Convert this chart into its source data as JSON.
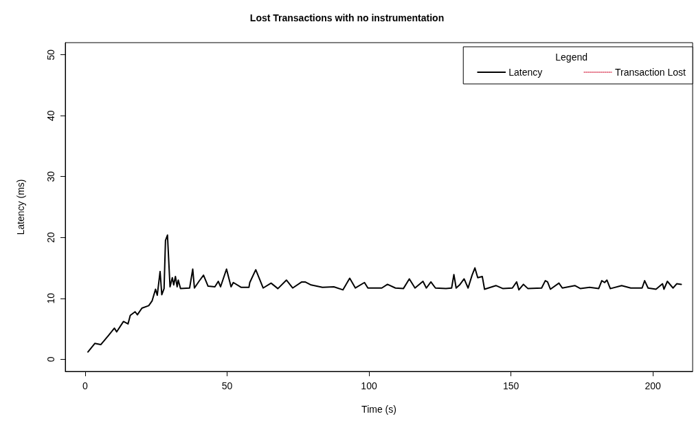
{
  "chart_data": {
    "type": "line",
    "title": "Lost Transactions with no instrumentation",
    "xlabel": "Time (s)",
    "ylabel": "Latency (ms)",
    "legend_title": "Legend",
    "legend": "top right",
    "grid": false,
    "marker": "none",
    "xlim": [
      -7,
      214
    ],
    "xticks": [
      0,
      50,
      100,
      150,
      200
    ],
    "ylim": [
      -2,
      52
    ],
    "yticks": [
      0,
      10,
      20,
      30,
      40,
      50
    ],
    "series": [
      {
        "name": "Latency",
        "color": "#000000",
        "line_style": "solid",
        "x": [
          1,
          3.4,
          5.5,
          8.2,
          10.3,
          11.1,
          13.5,
          15.1,
          15.9,
          17.6,
          18.4,
          20,
          22.4,
          23.6,
          24.8,
          25.4,
          26.4,
          27,
          27.8,
          28.3,
          29,
          29.9,
          30.7,
          31.2,
          31.8,
          32.4,
          32.8,
          33.6,
          36.8,
          37.9,
          38.5,
          40.1,
          41.7,
          43.3,
          45.7,
          46.9,
          47.7,
          49.8,
          51.4,
          52.2,
          55,
          57.7,
          58,
          60.1,
          61.5,
          62.7,
          65.5,
          67.9,
          70.9,
          73.1,
          76.3,
          77.5,
          79.6,
          83.6,
          87.6,
          90.8,
          93.2,
          95.2,
          98.4,
          99.6,
          104.5,
          106.5,
          109.3,
          112.1,
          114.2,
          116.2,
          119,
          120.2,
          121.8,
          123.4,
          127.1,
          129.1,
          129.9,
          130.7,
          131.9,
          133.5,
          134.9,
          136.3,
          137.3,
          138.3,
          139.9,
          140.7,
          144.7,
          147.2,
          150.5,
          152,
          152.8,
          154.4,
          156,
          160.8,
          162.1,
          162.9,
          163.9,
          166.9,
          168.1,
          172.5,
          174.5,
          177.7,
          180.9,
          182,
          183,
          183.8,
          185,
          189,
          192.2,
          196.2,
          197.1,
          198.3,
          201.1,
          203.4,
          203.9,
          205.1,
          207.1,
          208.4,
          210
        ],
        "values": [
          1.2,
          2.6,
          2.4,
          3.9,
          5.1,
          4.5,
          6.2,
          5.8,
          7.2,
          7.8,
          7.3,
          8.4,
          8.8,
          9.6,
          11.5,
          10.5,
          14.4,
          10.6,
          11.6,
          19.5,
          20.4,
          11.9,
          13.4,
          12.2,
          13.6,
          11.9,
          13,
          11.6,
          11.7,
          14.8,
          11.7,
          12.8,
          13.8,
          12,
          11.9,
          12.8,
          11.9,
          14.8,
          11.9,
          12.6,
          11.8,
          11.8,
          12.6,
          14.7,
          13.1,
          11.7,
          12.5,
          11.6,
          13,
          11.7,
          12.7,
          12.7,
          12.2,
          11.8,
          11.9,
          11.4,
          13.3,
          11.7,
          12.6,
          11.7,
          11.7,
          12.3,
          11.7,
          11.6,
          13.2,
          11.7,
          12.8,
          11.7,
          12.7,
          11.7,
          11.6,
          11.7,
          13.9,
          11.7,
          12.2,
          13.2,
          11.7,
          13.8,
          15,
          13.4,
          13.6,
          11.5,
          12.1,
          11.6,
          11.7,
          12.7,
          11.4,
          12.3,
          11.6,
          11.7,
          12.9,
          12.7,
          11.5,
          12.5,
          11.7,
          12.1,
          11.6,
          11.8,
          11.6,
          12.9,
          12.6,
          13,
          11.6,
          12.1,
          11.7,
          11.7,
          12.9,
          11.7,
          11.5,
          12.4,
          11.5,
          12.8,
          11.7,
          12.4,
          12.3
        ]
      },
      {
        "name": "Transaction Lost",
        "color": "#df536b",
        "line_style": "dotted"
      }
    ]
  }
}
